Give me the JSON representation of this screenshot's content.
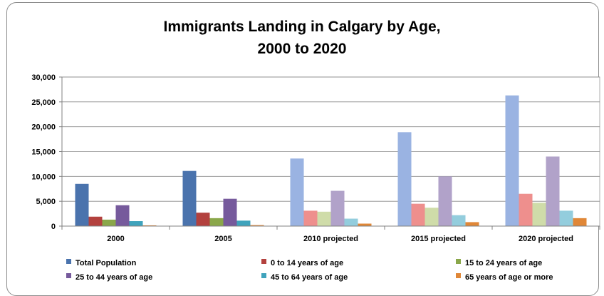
{
  "chart_data": {
    "type": "bar",
    "title_line1": "Immigrants Landing in Calgary by Age,",
    "title_line2": "2000 to 2020",
    "xlabel": "",
    "ylabel": "",
    "ylim": [
      0,
      30000
    ],
    "yticks": [
      "0",
      "5,000",
      "10,000",
      "15,000",
      "20,000",
      "25,000",
      "30,000"
    ],
    "ytick_values": [
      0,
      5000,
      10000,
      15000,
      20000,
      25000,
      30000
    ],
    "grid": "horizontal",
    "legend_position": "bottom",
    "categories": [
      "2000",
      "2005",
      "2010 projected",
      "2015 projected",
      "2020 projected"
    ],
    "projected_from_index": 2,
    "series": [
      {
        "name": "Total Population",
        "color": "#4a73ad",
        "projected_color": "#9ab3e2",
        "values": [
          8500,
          11100,
          13600,
          18900,
          26300
        ]
      },
      {
        "name": "0 to 14 years of age",
        "color": "#b3413e",
        "projected_color": "#ee8f8d",
        "values": [
          1900,
          2700,
          3100,
          4500,
          6500
        ]
      },
      {
        "name": "15 to 24 years of age",
        "color": "#8aa74a",
        "projected_color": "#cfdca9",
        "values": [
          1300,
          1600,
          2900,
          3700,
          4700
        ]
      },
      {
        "name": "25 to 44 years of age",
        "color": "#765a9c",
        "projected_color": "#b1a2c9",
        "values": [
          4200,
          5500,
          7100,
          10000,
          14000
        ]
      },
      {
        "name": "45 to 64 years of age",
        "color": "#3fa3bc",
        "projected_color": "#93cddd",
        "values": [
          1000,
          1100,
          1500,
          2200,
          3100
        ]
      },
      {
        "name": "65 years of age or more",
        "color": "#e08737",
        "projected_color": "#e08737",
        "values": [
          150,
          200,
          500,
          800,
          1600
        ]
      }
    ]
  }
}
